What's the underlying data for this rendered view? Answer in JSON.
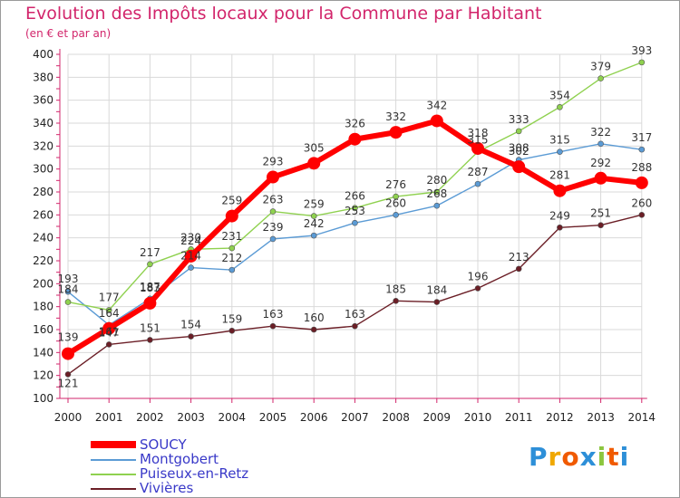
{
  "title": "Evolution des Impôts locaux pour la Commune par Habitant",
  "subtitle": "(en € et par an)",
  "chart_data": {
    "type": "line",
    "title": "Evolution des Impôts locaux pour la Commune par Habitant",
    "subtitle": "(en € et par an)",
    "xlabel": "",
    "ylabel": "",
    "ylim": [
      100,
      400
    ],
    "yticks": [
      100,
      120,
      140,
      160,
      180,
      200,
      220,
      240,
      260,
      280,
      300,
      320,
      340,
      360,
      380,
      400
    ],
    "grid": true,
    "legend_position": "bottom-left",
    "categories": [
      "2000",
      "2001",
      "2002",
      "2003",
      "2004",
      "2005",
      "2006",
      "2007",
      "2008",
      "2009",
      "2010",
      "2011",
      "2012",
      "2013",
      "2014"
    ],
    "series": [
      {
        "name": "Vivières",
        "color": "#6b1e26",
        "values": [
          121,
          147,
          151,
          154,
          159,
          163,
          160,
          163,
          185,
          184,
          196,
          213,
          249,
          251,
          260
        ],
        "labels": [
          "121",
          "147",
          "151",
          "154",
          "159",
          "163",
          "160",
          "163",
          "185",
          "184",
          "196",
          "213",
          "249",
          "251",
          "260"
        ]
      },
      {
        "name": "Montgobert",
        "color": "#5b9bd5",
        "values": [
          193,
          164,
          187,
          214,
          212,
          239,
          242,
          253,
          260,
          268,
          287,
          308,
          315,
          322,
          317
        ],
        "labels": [
          "193",
          "164",
          "187",
          "214",
          "212",
          "239",
          "242",
          "253",
          "260",
          "268",
          "287",
          "308",
          "315",
          "322",
          "317"
        ]
      },
      {
        "name": "Puiseux-en-Retz",
        "color": "#8fd14f",
        "values": [
          184,
          177,
          217,
          230,
          231,
          263,
          259,
          266,
          276,
          280,
          315,
          333,
          354,
          379,
          393
        ],
        "labels": [
          "184",
          "177",
          "217",
          "230",
          "231",
          "263",
          "259",
          "266",
          "276",
          "280",
          "315",
          "333",
          "354",
          "379",
          "393"
        ]
      },
      {
        "name": "SOUCY",
        "color": "#ff0000",
        "values": [
          139,
          161,
          183,
          224,
          259,
          293,
          305,
          326,
          332,
          342,
          318,
          302,
          281,
          292,
          288
        ],
        "labels": [
          "139",
          "161",
          "183",
          "224",
          "259",
          "293",
          "305",
          "326",
          "332",
          "342",
          "318",
          "302",
          "281",
          "292",
          "288"
        ]
      }
    ]
  },
  "legend": [
    {
      "name": "SOUCY",
      "color": "#ff0000"
    },
    {
      "name": "Montgobert",
      "color": "#5b9bd5"
    },
    {
      "name": "Puiseux-en-Retz",
      "color": "#8fd14f"
    },
    {
      "name": "Vivières",
      "color": "#6b1e26"
    }
  ],
  "logo": {
    "letters": [
      "P",
      "r",
      "o",
      "x",
      "i",
      "t",
      "i"
    ],
    "colors": [
      "#2d8fd8",
      "#f0a800",
      "#f05a00",
      "#2d8fd8",
      "#8cc63e",
      "#f05a00",
      "#2d8fd8"
    ]
  }
}
